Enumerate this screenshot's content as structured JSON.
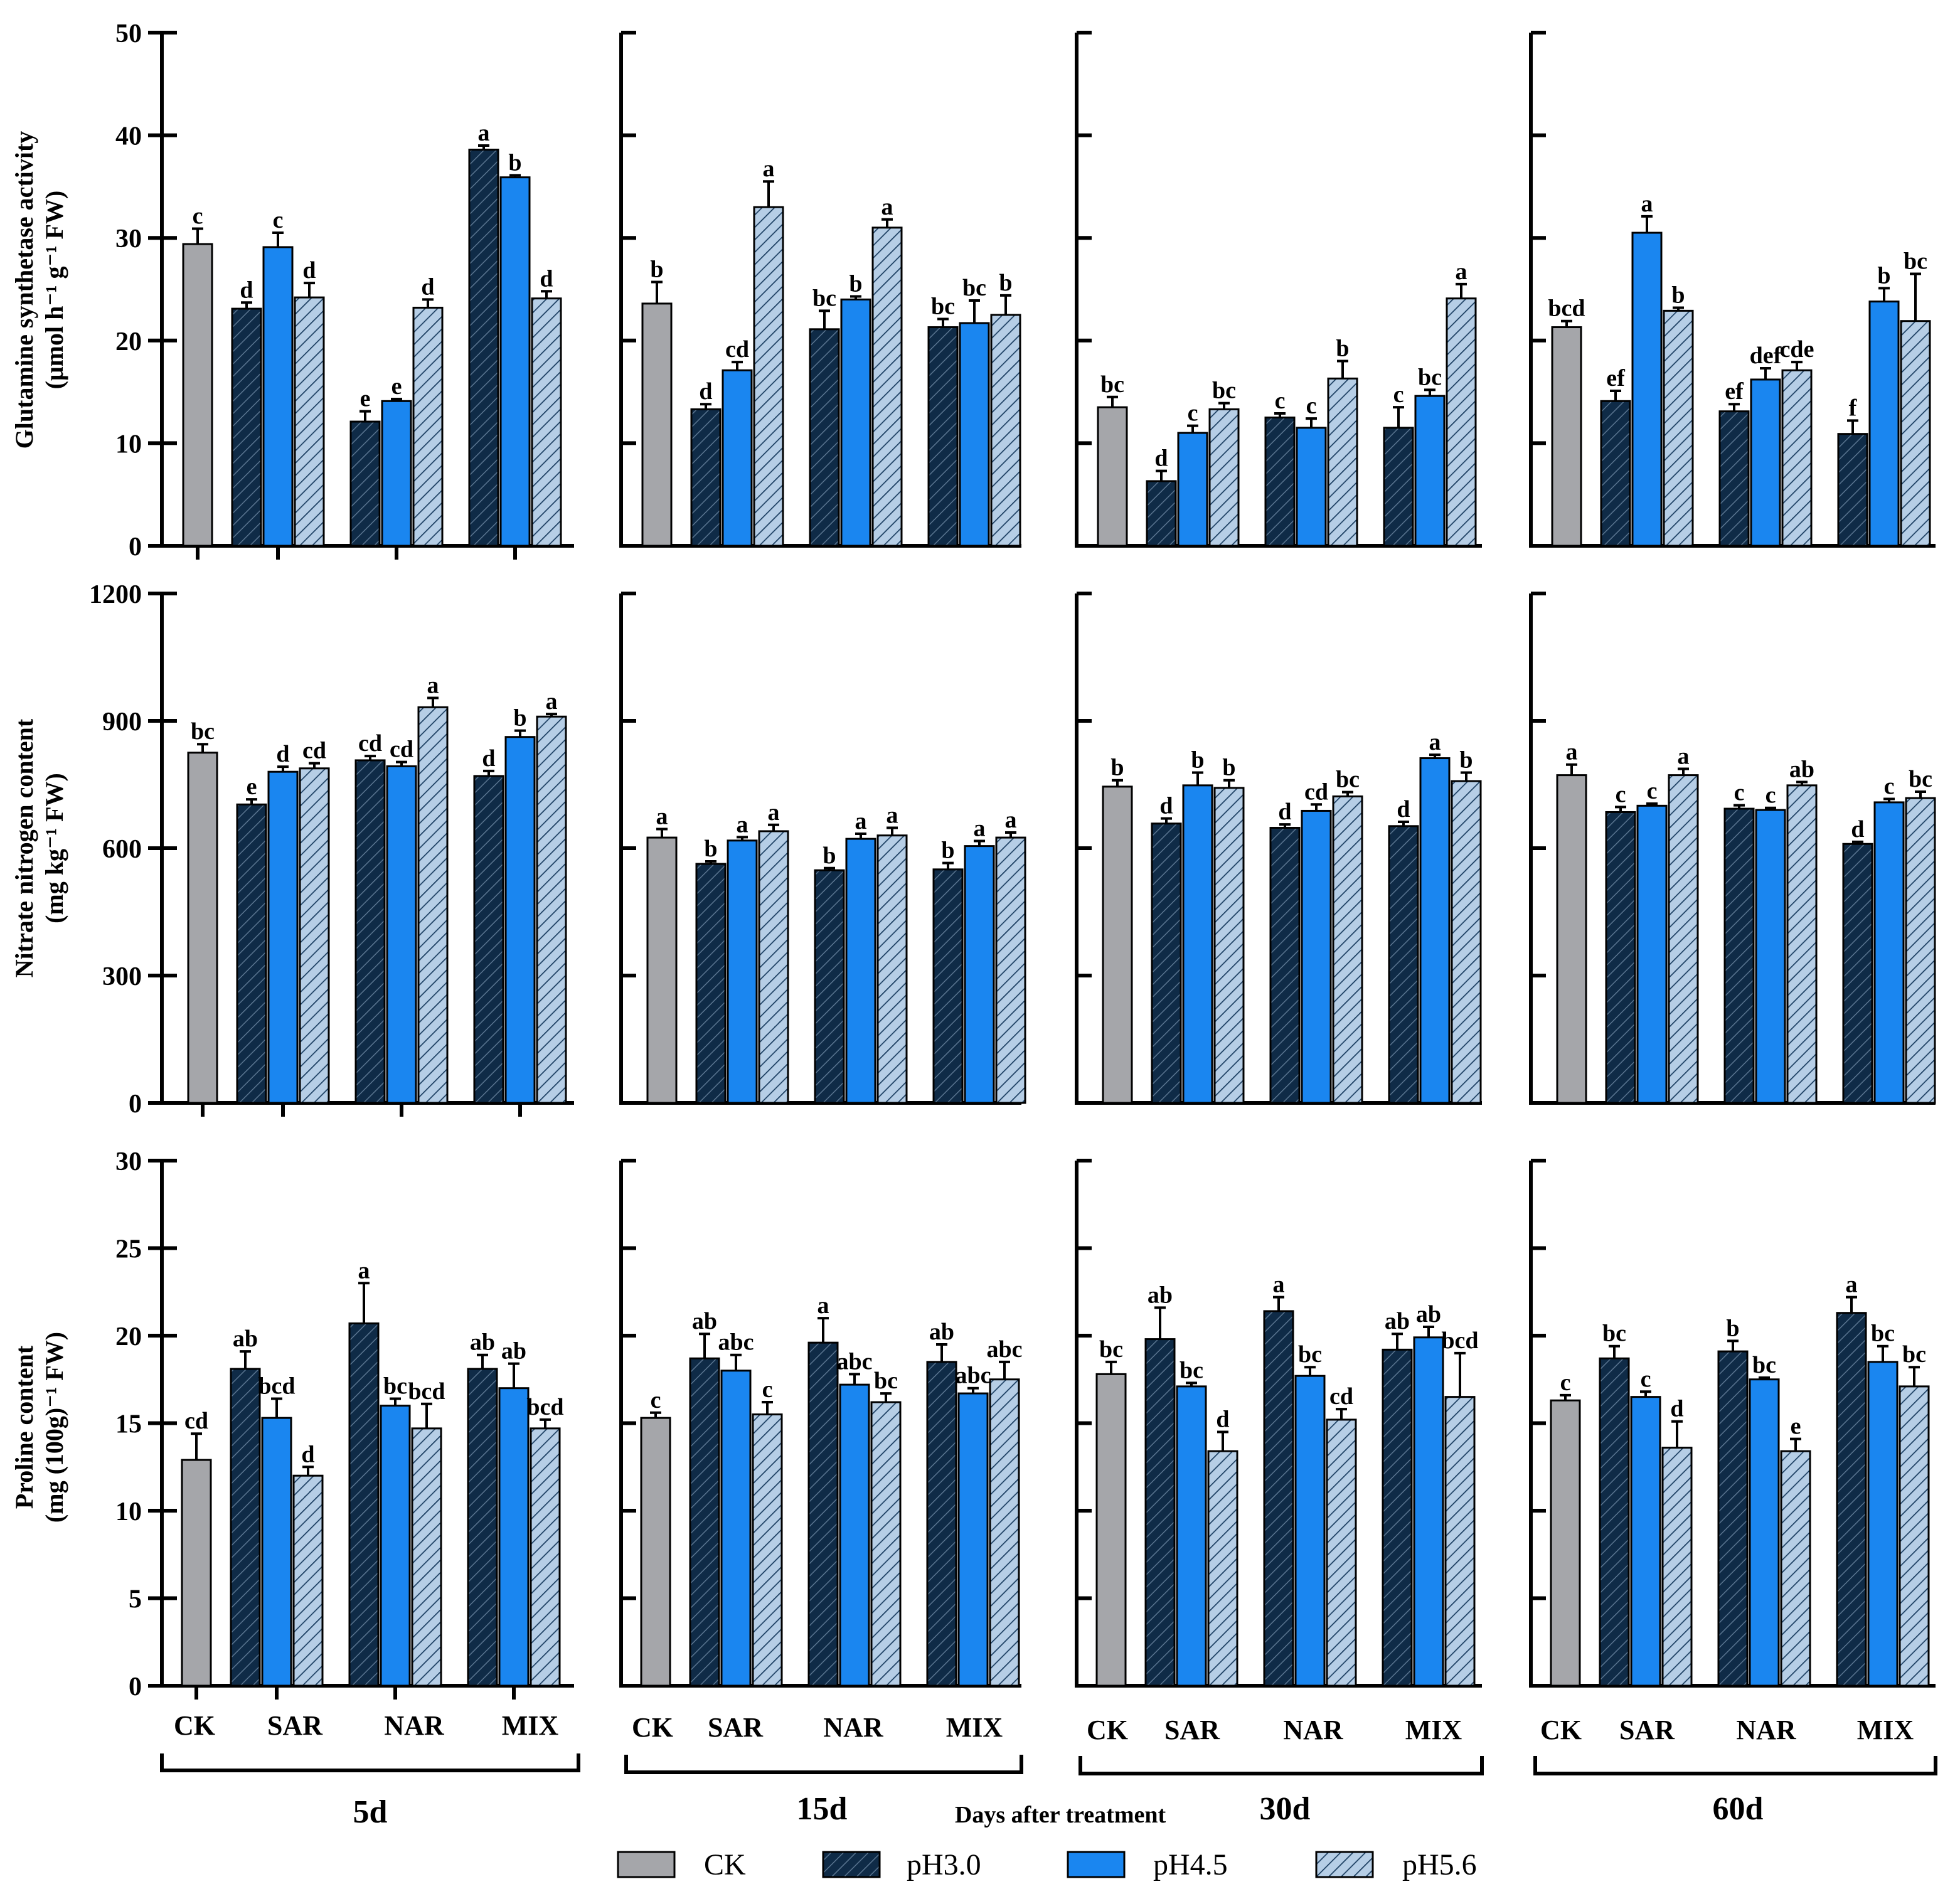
{
  "legend": [
    {
      "name": "CK",
      "fill": "#a5a6aa",
      "pattern": "none"
    },
    {
      "name": "pH3.0",
      "fill": "#0f2b47",
      "pattern": "dark-hatch"
    },
    {
      "name": "pH4.5",
      "fill": "#1a86f0",
      "pattern": "none"
    },
    {
      "name": "pH5.6",
      "fill": "#b6cee6",
      "pattern": "light-hatch"
    }
  ],
  "shared_xlabel": "Days after treatment",
  "time_points": [
    "5d",
    "15d",
    "30d",
    "60d"
  ],
  "group_labels": [
    "CK",
    "SAR",
    "NAR",
    "MIX"
  ],
  "chart_data": [
    {
      "type": "bar",
      "ylabel_line1": "Glutamine synthetase activity",
      "ylabel_line2": "(μmol h⁻¹ g⁻¹ FW)",
      "ylim": [
        0,
        50
      ],
      "yticks": [
        0,
        10,
        20,
        30,
        40,
        50
      ],
      "panels": [
        {
          "time": "5d",
          "ck": {
            "v": 29.4,
            "e": 1.5,
            "l": "c"
          },
          "treat": [
            [
              {
                "v": 23.1,
                "e": 0.6,
                "l": "d"
              },
              {
                "v": 29.1,
                "e": 1.4,
                "l": "c"
              },
              {
                "v": 24.2,
                "e": 1.4,
                "l": "d"
              }
            ],
            [
              {
                "v": 12.1,
                "e": 1.0,
                "l": "e"
              },
              {
                "v": 14.1,
                "e": 0.2,
                "l": "e"
              },
              {
                "v": 23.2,
                "e": 0.8,
                "l": "d"
              }
            ],
            [
              {
                "v": 38.6,
                "e": 0.4,
                "l": "a"
              },
              {
                "v": 35.9,
                "e": 0.2,
                "l": "b"
              },
              {
                "v": 24.1,
                "e": 0.7,
                "l": "d"
              }
            ]
          ]
        },
        {
          "time": "15d",
          "ck": {
            "v": 23.6,
            "e": 2.1,
            "l": "b"
          },
          "treat": [
            [
              {
                "v": 13.3,
                "e": 0.5,
                "l": "d"
              },
              {
                "v": 17.1,
                "e": 0.8,
                "l": "cd"
              },
              {
                "v": 33.0,
                "e": 2.5,
                "l": "a"
              }
            ],
            [
              {
                "v": 21.1,
                "e": 1.8,
                "l": "bc"
              },
              {
                "v": 24.0,
                "e": 0.3,
                "l": "b"
              },
              {
                "v": 31.0,
                "e": 0.8,
                "l": "a"
              }
            ],
            [
              {
                "v": 21.3,
                "e": 0.8,
                "l": "bc"
              },
              {
                "v": 21.7,
                "e": 2.2,
                "l": "bc"
              },
              {
                "v": 22.5,
                "e": 1.9,
                "l": "b"
              }
            ]
          ]
        },
        {
          "time": "30d",
          "ck": {
            "v": 13.5,
            "e": 1.0,
            "l": "bc"
          },
          "treat": [
            [
              {
                "v": 6.3,
                "e": 1.0,
                "l": "d"
              },
              {
                "v": 11.0,
                "e": 0.7,
                "l": "c"
              },
              {
                "v": 13.3,
                "e": 0.6,
                "l": "bc"
              }
            ],
            [
              {
                "v": 12.5,
                "e": 0.4,
                "l": "c"
              },
              {
                "v": 11.5,
                "e": 0.9,
                "l": "c"
              },
              {
                "v": 16.3,
                "e": 1.7,
                "l": "b"
              }
            ],
            [
              {
                "v": 11.5,
                "e": 2.0,
                "l": "c"
              },
              {
                "v": 14.6,
                "e": 0.6,
                "l": "bc"
              },
              {
                "v": 24.1,
                "e": 1.4,
                "l": "a"
              }
            ]
          ]
        },
        {
          "time": "60d",
          "ck": {
            "v": 21.3,
            "e": 0.6,
            "l": "bcd"
          },
          "treat": [
            [
              {
                "v": 14.1,
                "e": 1.0,
                "l": "ef"
              },
              {
                "v": 30.5,
                "e": 1.6,
                "l": "a"
              },
              {
                "v": 22.9,
                "e": 0.3,
                "l": "b"
              }
            ],
            [
              {
                "v": 13.1,
                "e": 0.7,
                "l": "ef"
              },
              {
                "v": 16.2,
                "e": 1.1,
                "l": "def"
              },
              {
                "v": 17.1,
                "e": 0.8,
                "l": "cde"
              }
            ],
            [
              {
                "v": 10.9,
                "e": 1.3,
                "l": "f"
              },
              {
                "v": 23.8,
                "e": 1.3,
                "l": "b"
              },
              {
                "v": 21.9,
                "e": 4.6,
                "l": "bc"
              }
            ]
          ]
        }
      ]
    },
    {
      "type": "bar",
      "ylabel_line1": "Nitrate nitrogen content",
      "ylabel_line2": "(mg kg⁻¹ FW)",
      "ylim": [
        0,
        1200
      ],
      "yticks": [
        0,
        300,
        600,
        900,
        1200
      ],
      "panels": [
        {
          "time": "5d",
          "ck": {
            "v": 825,
            "e": 20,
            "l": "bc"
          },
          "treat": [
            [
              {
                "v": 703,
                "e": 12,
                "l": "e"
              },
              {
                "v": 780,
                "e": 12,
                "l": "d"
              },
              {
                "v": 788,
                "e": 12,
                "l": "cd"
              }
            ],
            [
              {
                "v": 807,
                "e": 10,
                "l": "cd"
              },
              {
                "v": 793,
                "e": 10,
                "l": "cd"
              },
              {
                "v": 932,
                "e": 22,
                "l": "a"
              }
            ],
            [
              {
                "v": 770,
                "e": 12,
                "l": "d"
              },
              {
                "v": 862,
                "e": 15,
                "l": "b"
              },
              {
                "v": 910,
                "e": 6,
                "l": "a"
              }
            ]
          ]
        },
        {
          "time": "15d",
          "ck": {
            "v": 625,
            "e": 20,
            "l": "a"
          },
          "treat": [
            [
              {
                "v": 563,
                "e": 6,
                "l": "b"
              },
              {
                "v": 618,
                "e": 8,
                "l": "a"
              },
              {
                "v": 640,
                "e": 15,
                "l": "a"
              }
            ],
            [
              {
                "v": 548,
                "e": 5,
                "l": "b"
              },
              {
                "v": 622,
                "e": 12,
                "l": "a"
              },
              {
                "v": 630,
                "e": 18,
                "l": "a"
              }
            ],
            [
              {
                "v": 550,
                "e": 15,
                "l": "b"
              },
              {
                "v": 605,
                "e": 12,
                "l": "a"
              },
              {
                "v": 625,
                "e": 12,
                "l": "a"
              }
            ]
          ]
        },
        {
          "time": "30d",
          "ck": {
            "v": 745,
            "e": 15,
            "l": "b"
          },
          "treat": [
            [
              {
                "v": 658,
                "e": 12,
                "l": "d"
              },
              {
                "v": 748,
                "e": 30,
                "l": "b"
              },
              {
                "v": 742,
                "e": 18,
                "l": "b"
              }
            ],
            [
              {
                "v": 648,
                "e": 8,
                "l": "d"
              },
              {
                "v": 688,
                "e": 15,
                "l": "cd"
              },
              {
                "v": 722,
                "e": 10,
                "l": "bc"
              }
            ],
            [
              {
                "v": 652,
                "e": 10,
                "l": "d"
              },
              {
                "v": 812,
                "e": 8,
                "l": "a"
              },
              {
                "v": 758,
                "e": 20,
                "l": "b"
              }
            ]
          ]
        },
        {
          "time": "60d",
          "ck": {
            "v": 772,
            "e": 25,
            "l": "a"
          },
          "treat": [
            [
              {
                "v": 685,
                "e": 12,
                "l": "c"
              },
              {
                "v": 700,
                "e": 5,
                "l": "c"
              },
              {
                "v": 772,
                "e": 15,
                "l": "a"
              }
            ],
            [
              {
                "v": 693,
                "e": 8,
                "l": "c"
              },
              {
                "v": 690,
                "e": 5,
                "l": "c"
              },
              {
                "v": 748,
                "e": 8,
                "l": "ab"
              }
            ],
            [
              {
                "v": 610,
                "e": 5,
                "l": "d"
              },
              {
                "v": 708,
                "e": 8,
                "l": "c"
              },
              {
                "v": 718,
                "e": 15,
                "l": "bc"
              }
            ]
          ]
        }
      ]
    },
    {
      "type": "bar",
      "ylabel_line1": "Proline content",
      "ylabel_line2": "(mg (100g)⁻¹ FW)",
      "ylim": [
        0,
        30
      ],
      "yticks": [
        0,
        5,
        10,
        15,
        20,
        25,
        30
      ],
      "panels": [
        {
          "time": "5d",
          "ck": {
            "v": 12.9,
            "e": 1.5,
            "l": "cd"
          },
          "treat": [
            [
              {
                "v": 18.1,
                "e": 1.0,
                "l": "ab"
              },
              {
                "v": 15.3,
                "e": 1.1,
                "l": "bcd"
              },
              {
                "v": 12.0,
                "e": 0.5,
                "l": "d"
              }
            ],
            [
              {
                "v": 20.7,
                "e": 2.3,
                "l": "a"
              },
              {
                "v": 16.0,
                "e": 0.4,
                "l": "bc"
              },
              {
                "v": 14.7,
                "e": 1.4,
                "l": "bcd"
              }
            ],
            [
              {
                "v": 18.1,
                "e": 0.8,
                "l": "ab"
              },
              {
                "v": 17.0,
                "e": 1.4,
                "l": "ab"
              },
              {
                "v": 14.7,
                "e": 0.5,
                "l": "bcd"
              }
            ]
          ]
        },
        {
          "time": "15d",
          "ck": {
            "v": 15.3,
            "e": 0.3,
            "l": "c"
          },
          "treat": [
            [
              {
                "v": 18.7,
                "e": 1.4,
                "l": "ab"
              },
              {
                "v": 18.0,
                "e": 0.9,
                "l": "abc"
              },
              {
                "v": 15.5,
                "e": 0.7,
                "l": "c"
              }
            ],
            [
              {
                "v": 19.6,
                "e": 1.4,
                "l": "a"
              },
              {
                "v": 17.2,
                "e": 0.6,
                "l": "abc"
              },
              {
                "v": 16.2,
                "e": 0.5,
                "l": "bc"
              }
            ],
            [
              {
                "v": 18.5,
                "e": 1.0,
                "l": "ab"
              },
              {
                "v": 16.7,
                "e": 0.3,
                "l": "abc"
              },
              {
                "v": 17.5,
                "e": 1.0,
                "l": "abc"
              }
            ]
          ]
        },
        {
          "time": "30d",
          "ck": {
            "v": 17.8,
            "e": 0.7,
            "l": "bc"
          },
          "treat": [
            [
              {
                "v": 19.8,
                "e": 1.8,
                "l": "ab"
              },
              {
                "v": 17.1,
                "e": 0.2,
                "l": "bc"
              },
              {
                "v": 13.4,
                "e": 1.1,
                "l": "d"
              }
            ],
            [
              {
                "v": 21.4,
                "e": 0.8,
                "l": "a"
              },
              {
                "v": 17.7,
                "e": 0.5,
                "l": "bc"
              },
              {
                "v": 15.2,
                "e": 0.6,
                "l": "cd"
              }
            ],
            [
              {
                "v": 19.2,
                "e": 0.9,
                "l": "ab"
              },
              {
                "v": 19.9,
                "e": 0.6,
                "l": "ab"
              },
              {
                "v": 16.5,
                "e": 2.5,
                "l": "bcd"
              }
            ]
          ]
        },
        {
          "time": "60d",
          "ck": {
            "v": 16.3,
            "e": 0.3,
            "l": "c"
          },
          "treat": [
            [
              {
                "v": 18.7,
                "e": 0.7,
                "l": "bc"
              },
              {
                "v": 16.5,
                "e": 0.3,
                "l": "c"
              },
              {
                "v": 13.6,
                "e": 1.5,
                "l": "d"
              }
            ],
            [
              {
                "v": 19.1,
                "e": 0.6,
                "l": "b"
              },
              {
                "v": 17.5,
                "e": 0.1,
                "l": "bc"
              },
              {
                "v": 13.4,
                "e": 0.7,
                "l": "e"
              }
            ],
            [
              {
                "v": 21.3,
                "e": 0.9,
                "l": "a"
              },
              {
                "v": 18.5,
                "e": 0.9,
                "l": "bc"
              },
              {
                "v": 17.1,
                "e": 1.1,
                "l": "bc"
              }
            ]
          ]
        }
      ]
    }
  ]
}
